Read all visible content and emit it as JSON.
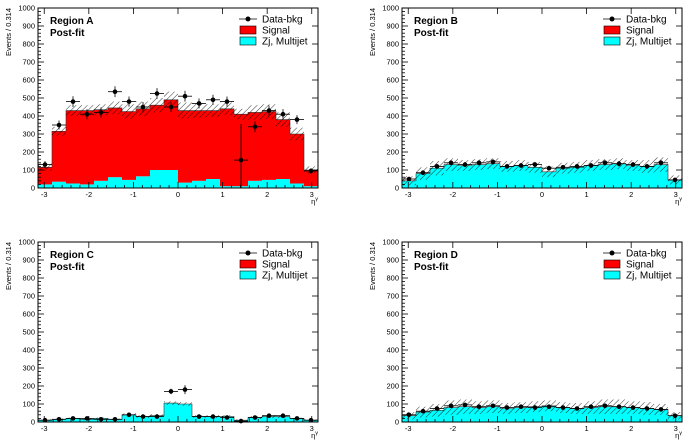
{
  "chart_data": [
    {
      "type": "bar",
      "title": "Region A",
      "subtitle": "Post-fit",
      "xlabel": "η^γ",
      "ylabel": "Events / 0.314",
      "xlim": [
        -3.14,
        3.14
      ],
      "ylim": [
        0,
        1000
      ],
      "xticks": [
        -3,
        -2,
        -1,
        0,
        1,
        2,
        3
      ],
      "yticks": [
        0,
        100,
        200,
        300,
        400,
        500,
        600,
        700,
        800,
        900,
        1000
      ],
      "grid": false,
      "legend_position": "top-right",
      "legend": [
        "Data-bkg",
        "Signal",
        "Zj, Multijet"
      ],
      "bin_edges": [
        -3.14,
        -2.826,
        -2.512,
        -2.198,
        -1.884,
        -1.57,
        -1.256,
        -0.942,
        -0.628,
        -0.314,
        0,
        0.314,
        0.628,
        0.942,
        1.256,
        1.57,
        1.884,
        2.198,
        2.512,
        2.826,
        3.14
      ],
      "series": [
        {
          "name": "Zj, Multijet",
          "kind": "stack",
          "color": "#00ffff",
          "values": [
            20,
            35,
            25,
            20,
            40,
            60,
            45,
            65,
            100,
            100,
            30,
            40,
            50,
            10,
            10,
            40,
            45,
            50,
            25,
            10
          ]
        },
        {
          "name": "Signal",
          "kind": "stack",
          "color": "#ff0000",
          "values": [
            95,
            280,
            405,
            410,
            395,
            385,
            380,
            375,
            360,
            390,
            400,
            390,
            380,
            430,
            400,
            380,
            380,
            330,
            275,
            90
          ]
        },
        {
          "name": "Data-bkg",
          "kind": "points",
          "color": "#000000",
          "values": [
            130,
            350,
            480,
            410,
            420,
            535,
            480,
            450,
            525,
            450,
            510,
            470,
            490,
            480,
            155,
            340,
            430,
            410,
            380,
            95
          ],
          "errors": [
            20,
            25,
            30,
            28,
            28,
            30,
            28,
            28,
            30,
            28,
            30,
            28,
            28,
            28,
            200,
            30,
            28,
            28,
            25,
            15
          ]
        }
      ],
      "uncertainty_band": [
        20,
        25,
        30,
        30,
        30,
        35,
        40,
        40,
        40,
        45,
        45,
        40,
        35,
        35,
        30,
        40,
        40,
        40,
        35,
        20
      ]
    },
    {
      "type": "bar",
      "title": "Region B",
      "subtitle": "Post-fit",
      "xlabel": "η^γ",
      "ylabel": "Events / 0.314",
      "xlim": [
        -3.14,
        3.14
      ],
      "ylim": [
        0,
        1000
      ],
      "xticks": [
        -3,
        -2,
        -1,
        0,
        1,
        2,
        3
      ],
      "yticks": [
        0,
        100,
        200,
        300,
        400,
        500,
        600,
        700,
        800,
        900,
        1000
      ],
      "grid": false,
      "legend_position": "top-right",
      "legend": [
        "Data-bkg",
        "Signal",
        "Zj, Multijet"
      ],
      "bin_edges": [
        -3.14,
        -2.826,
        -2.512,
        -2.198,
        -1.884,
        -1.57,
        -1.256,
        -0.942,
        -0.628,
        -0.314,
        0,
        0.314,
        0.628,
        0.942,
        1.256,
        1.57,
        1.884,
        2.198,
        2.512,
        2.826,
        3.14
      ],
      "series": [
        {
          "name": "Zj, Multijet",
          "kind": "stack",
          "color": "#00ffff",
          "values": [
            40,
            80,
            110,
            130,
            125,
            130,
            135,
            120,
            125,
            115,
            90,
            110,
            115,
            125,
            130,
            135,
            125,
            120,
            130,
            45
          ]
        },
        {
          "name": "Signal",
          "kind": "stack",
          "color": "#ff0000",
          "values": [
            0,
            0,
            0,
            0,
            0,
            0,
            0,
            0,
            0,
            0,
            0,
            0,
            0,
            0,
            0,
            0,
            0,
            0,
            0,
            0
          ]
        },
        {
          "name": "Data-bkg",
          "kind": "points",
          "color": "#000000",
          "values": [
            50,
            85,
            120,
            140,
            130,
            140,
            145,
            120,
            125,
            130,
            110,
            115,
            120,
            125,
            140,
            135,
            130,
            120,
            140,
            45
          ],
          "errors": [
            10,
            12,
            14,
            15,
            14,
            15,
            15,
            14,
            14,
            14,
            13,
            13,
            14,
            14,
            15,
            15,
            14,
            14,
            15,
            10
          ]
        }
      ],
      "uncertainty_band": [
        25,
        35,
        40,
        35,
        30,
        30,
        30,
        30,
        30,
        30,
        30,
        30,
        30,
        30,
        30,
        30,
        30,
        35,
        40,
        25
      ]
    },
    {
      "type": "bar",
      "title": "Region C",
      "subtitle": "Post-fit",
      "xlabel": "η^γ",
      "ylabel": "Events / 0.314",
      "xlim": [
        -3.14,
        3.14
      ],
      "ylim": [
        0,
        1000
      ],
      "xticks": [
        -3,
        -2,
        -1,
        0,
        1,
        2,
        3
      ],
      "yticks": [
        0,
        100,
        200,
        300,
        400,
        500,
        600,
        700,
        800,
        900,
        1000
      ],
      "grid": false,
      "legend_position": "top-right",
      "legend": [
        "Data-bkg",
        "Signal",
        "Zj, Multijet"
      ],
      "bin_edges": [
        -3.14,
        -2.826,
        -2.512,
        -2.198,
        -1.884,
        -1.57,
        -1.256,
        -0.942,
        -0.628,
        -0.314,
        0,
        0.314,
        0.628,
        0.942,
        1.256,
        1.57,
        1.884,
        2.198,
        2.512,
        2.826,
        3.14
      ],
      "series": [
        {
          "name": "Zj, Multijet",
          "kind": "stack",
          "color": "#00ffff",
          "values": [
            10,
            15,
            20,
            15,
            20,
            15,
            40,
            30,
            35,
            105,
            100,
            30,
            30,
            30,
            10,
            25,
            30,
            30,
            20,
            10
          ]
        },
        {
          "name": "Signal",
          "kind": "stack",
          "color": "#ff0000",
          "values": [
            0,
            0,
            0,
            0,
            0,
            0,
            0,
            0,
            0,
            0,
            0,
            0,
            0,
            0,
            0,
            0,
            0,
            0,
            0,
            0
          ]
        },
        {
          "name": "Data-bkg",
          "kind": "points",
          "color": "#000000",
          "values": [
            10,
            15,
            20,
            20,
            15,
            15,
            40,
            30,
            30,
            170,
            180,
            30,
            30,
            25,
            5,
            25,
            35,
            35,
            20,
            10
          ],
          "errors": [
            5,
            6,
            7,
            7,
            6,
            6,
            9,
            8,
            8,
            15,
            25,
            8,
            8,
            7,
            4,
            7,
            8,
            8,
            6,
            5
          ]
        }
      ],
      "uncertainty_band": [
        5,
        5,
        5,
        5,
        5,
        5,
        8,
        8,
        8,
        10,
        10,
        8,
        8,
        8,
        5,
        8,
        8,
        8,
        5,
        5
      ]
    },
    {
      "type": "bar",
      "title": "Region D",
      "subtitle": "Post-fit",
      "xlabel": "η^γ",
      "ylabel": "Events / 0.314",
      "xlim": [
        -3.14,
        3.14
      ],
      "ylim": [
        0,
        1000
      ],
      "xticks": [
        -3,
        -2,
        -1,
        0,
        1,
        2,
        3
      ],
      "yticks": [
        0,
        100,
        200,
        300,
        400,
        500,
        600,
        700,
        800,
        900,
        1000
      ],
      "grid": false,
      "legend_position": "top-right",
      "legend": [
        "Data-bkg",
        "Signal",
        "Zj, Multijet"
      ],
      "bin_edges": [
        -3.14,
        -2.826,
        -2.512,
        -2.198,
        -1.884,
        -1.57,
        -1.256,
        -0.942,
        -0.628,
        -0.314,
        0,
        0.314,
        0.628,
        0.942,
        1.256,
        1.57,
        1.884,
        2.198,
        2.512,
        2.826,
        3.14
      ],
      "series": [
        {
          "name": "Zj, Multijet",
          "kind": "stack",
          "color": "#00ffff",
          "values": [
            35,
            55,
            65,
            80,
            85,
            80,
            85,
            75,
            80,
            85,
            90,
            80,
            75,
            80,
            85,
            85,
            80,
            75,
            70,
            35
          ]
        },
        {
          "name": "Signal",
          "kind": "stack",
          "color": "#ff0000",
          "values": [
            0,
            0,
            0,
            0,
            0,
            0,
            0,
            0,
            0,
            0,
            0,
            0,
            0,
            0,
            0,
            0,
            0,
            0,
            0,
            0
          ]
        },
        {
          "name": "Data-bkg",
          "kind": "points",
          "color": "#000000",
          "values": [
            40,
            60,
            75,
            90,
            95,
            85,
            90,
            80,
            85,
            80,
            85,
            80,
            75,
            85,
            90,
            85,
            80,
            75,
            70,
            35
          ],
          "errors": [
            8,
            9,
            10,
            11,
            11,
            10,
            11,
            10,
            10,
            10,
            10,
            10,
            10,
            10,
            11,
            10,
            10,
            10,
            9,
            7
          ]
        }
      ],
      "uncertainty_band": [
        20,
        30,
        35,
        40,
        40,
        35,
        35,
        30,
        30,
        30,
        30,
        30,
        30,
        35,
        40,
        40,
        35,
        35,
        30,
        20
      ]
    }
  ]
}
